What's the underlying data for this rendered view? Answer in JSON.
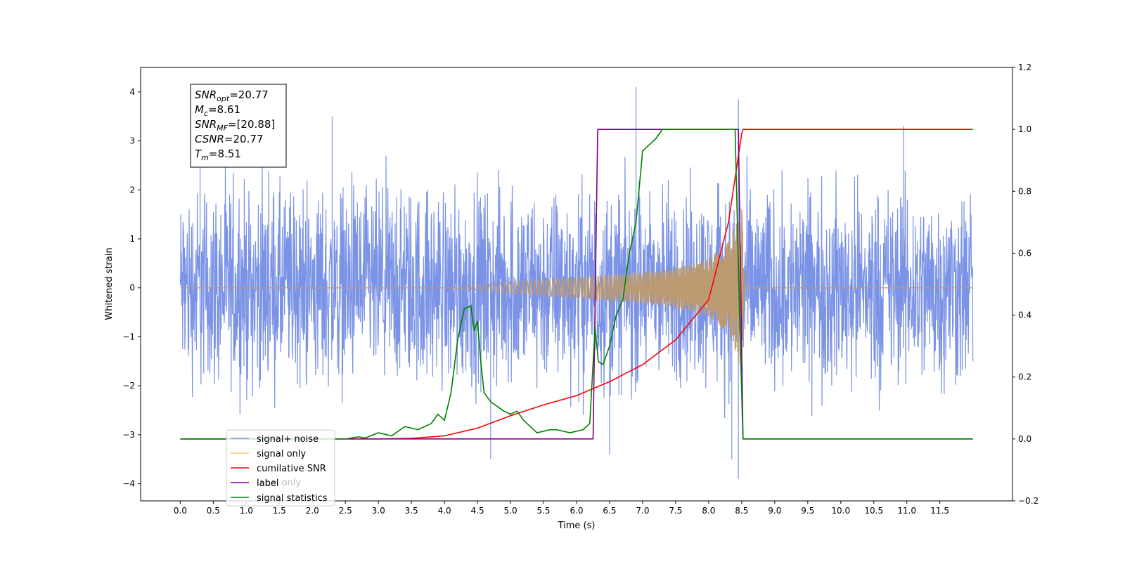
{
  "chart_data": {
    "type": "line",
    "xlabel": "Time (s)",
    "ylabel": "Whitened strain",
    "xlim": [
      -0.6,
      12.6
    ],
    "ylim": [
      -4.35,
      4.5
    ],
    "y2lim": [
      -0.2,
      1.2
    ],
    "x_ticks": [
      "0.0",
      "0.5",
      "1.0",
      "1.5",
      "2.0",
      "2.5",
      "3.0",
      "3.5",
      "4.0",
      "4.5",
      "5.0",
      "5.5",
      "6.0",
      "6.5",
      "7.0",
      "7.5",
      "8.0",
      "8.5",
      "9.0",
      "9.5",
      "10.0",
      "10.5",
      "11.0",
      "11.5"
    ],
    "y_ticks": [
      "4",
      "3",
      "2",
      "1",
      "0",
      "−1",
      "−2",
      "−3",
      "−4"
    ],
    "y2_ticks": [
      "1.2",
      "1.0",
      "0.8",
      "0.6",
      "0.4",
      "0.2",
      "0.0",
      "−0.2"
    ],
    "colors": {
      "signal_noise": "#7b93e6",
      "signal_only": "#f7c873",
      "signal_overlay": "#bc9a72",
      "cumulative_snr": "#ff0000",
      "label": "#800080",
      "signal_statistics": "#008000"
    },
    "annotation": [
      {
        "name": "SNR",
        "sub": "opt",
        "value": "=20.77"
      },
      {
        "name": "M",
        "sub": "c",
        "value": "=8.61"
      },
      {
        "name": "SNR",
        "sub": "MF",
        "value": "=[20.88]"
      },
      {
        "name": "CSNR",
        "sub": "",
        "value": "=20.77"
      },
      {
        "name": "T",
        "sub": "m",
        "value": "=8.51"
      }
    ],
    "legend": {
      "placement": "lower-left",
      "entries": [
        "signal+ noise",
        "signal only",
        "cumilative SNR",
        "label",
        "signal statistics"
      ],
      "hidden_entry": "label only"
    },
    "series": [
      {
        "name": "signal+ noise",
        "axis": "left",
        "x_range": [
          0,
          12
        ],
        "noise_amplitude": 1.6,
        "spikes": [
          [
            0.3,
            2.6
          ],
          [
            2.3,
            3.5
          ],
          [
            4.7,
            -3.5
          ],
          [
            6.9,
            4.1
          ],
          [
            8.45,
            3.85
          ],
          [
            8.45,
            -3.9
          ],
          [
            10.95,
            3.3
          ],
          [
            6.5,
            -3.4
          ],
          [
            8.35,
            -3.5
          ]
        ]
      },
      {
        "name": "signal only",
        "axis": "left",
        "x": [
          0,
          4.0,
          5.0,
          6.0,
          6.5,
          7.0,
          7.5,
          8.0,
          8.3,
          8.4,
          8.5,
          8.55,
          12.0
        ],
        "envelope": [
          0,
          0,
          0.12,
          0.22,
          0.27,
          0.32,
          0.4,
          0.6,
          0.95,
          1.3,
          1.8,
          0,
          0
        ]
      },
      {
        "name": "cumilative SNR",
        "axis": "right",
        "x": [
          0,
          3.0,
          3.5,
          4.0,
          4.5,
          5.0,
          5.5,
          6.0,
          6.5,
          7.0,
          7.5,
          8.0,
          8.3,
          8.51,
          12.0
        ],
        "y": [
          0,
          0,
          0.002,
          0.01,
          0.035,
          0.075,
          0.11,
          0.14,
          0.185,
          0.24,
          0.32,
          0.45,
          0.7,
          1.0,
          1.0
        ]
      },
      {
        "name": "label",
        "axis": "right",
        "x": [
          0,
          6.25,
          6.32,
          8.45,
          8.52,
          12.0
        ],
        "y": [
          0,
          0,
          1.0,
          1.0,
          0,
          0
        ]
      },
      {
        "name": "signal statistics",
        "axis": "right",
        "x": [
          0,
          2.5,
          2.7,
          2.8,
          3.0,
          3.2,
          3.4,
          3.6,
          3.8,
          3.9,
          4.0,
          4.1,
          4.2,
          4.3,
          4.4,
          4.45,
          4.5,
          4.55,
          4.6,
          4.7,
          4.9,
          5.0,
          5.1,
          5.2,
          5.4,
          5.6,
          5.7,
          5.9,
          6.1,
          6.2,
          6.28,
          6.33,
          6.4,
          6.5,
          6.6,
          6.7,
          6.8,
          6.9,
          7.0,
          7.1,
          7.2,
          7.3,
          7.5,
          7.7,
          8.0,
          8.4,
          8.48,
          8.52,
          8.6,
          12.0
        ],
        "y": [
          0,
          0,
          0.007,
          0.003,
          0.02,
          0.01,
          0.04,
          0.03,
          0.05,
          0.08,
          0.06,
          0.15,
          0.32,
          0.42,
          0.43,
          0.35,
          0.38,
          0.25,
          0.15,
          0.12,
          0.09,
          0.08,
          0.09,
          0.06,
          0.02,
          0.03,
          0.03,
          0.02,
          0.03,
          0.05,
          0.36,
          0.25,
          0.24,
          0.3,
          0.4,
          0.45,
          0.6,
          0.7,
          0.93,
          0.95,
          0.97,
          1.0,
          1.0,
          1.0,
          1.0,
          1.0,
          0.3,
          0,
          0,
          0
        ]
      }
    ]
  }
}
